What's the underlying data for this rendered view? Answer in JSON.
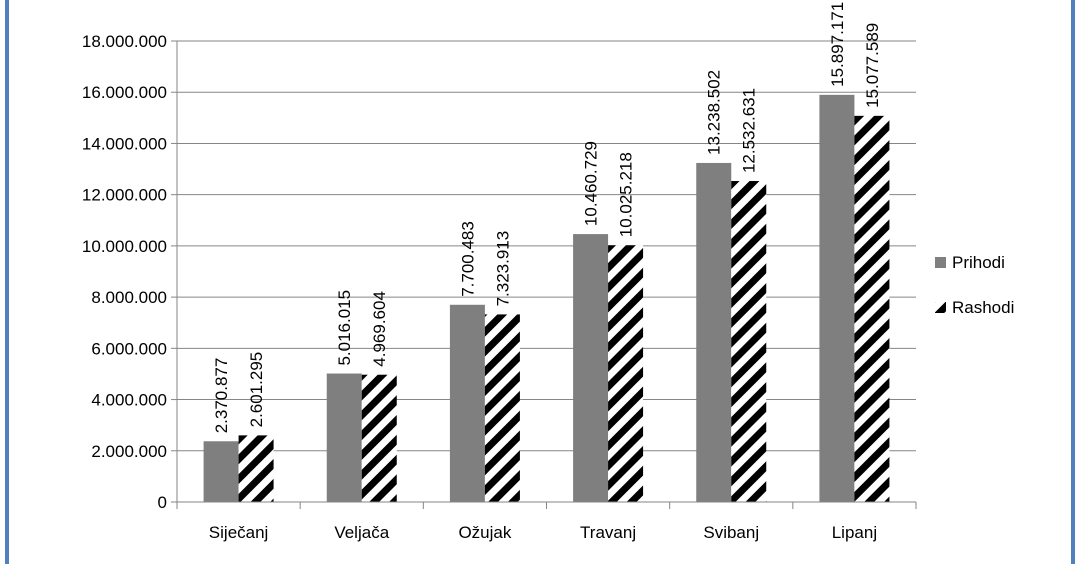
{
  "chart_data": {
    "type": "bar",
    "title": "",
    "xlabel": "",
    "ylabel": "",
    "categories": [
      "Siječanj",
      "Veljača",
      "Ožujak",
      "Travanj",
      "Svibanj",
      "Lipanj"
    ],
    "series": [
      {
        "name": "Prihodi",
        "values": [
          2370877,
          5016015,
          7700483,
          10460729,
          13238502,
          15897171
        ],
        "labels": [
          "2.370.877",
          "5.016.015",
          "7.700.483",
          "10.460.729",
          "13.238.502",
          "15.897.171"
        ],
        "color": "#7f7f7f",
        "pattern": "solid"
      },
      {
        "name": "Rashodi",
        "values": [
          2601295,
          4969604,
          7323913,
          10025218,
          12532631,
          15077589
        ],
        "labels": [
          "2.601.295",
          "4.969.604",
          "7.323.913",
          "10.025.218",
          "12.532.631",
          "15.077.589"
        ],
        "color": "#000000",
        "pattern": "diagonal-stripes"
      }
    ],
    "ylim": [
      0,
      18000000
    ],
    "yticks": [
      0,
      2000000,
      4000000,
      6000000,
      8000000,
      10000000,
      12000000,
      14000000,
      16000000,
      18000000
    ],
    "ytick_labels": [
      "0",
      "2.000.000",
      "4.000.000",
      "6.000.000",
      "8.000.000",
      "10.000.000",
      "12.000.000",
      "14.000.000",
      "16.000.000",
      "18.000.000"
    ],
    "grid": true,
    "legend": "right",
    "frame_color": "#4f81bd"
  }
}
